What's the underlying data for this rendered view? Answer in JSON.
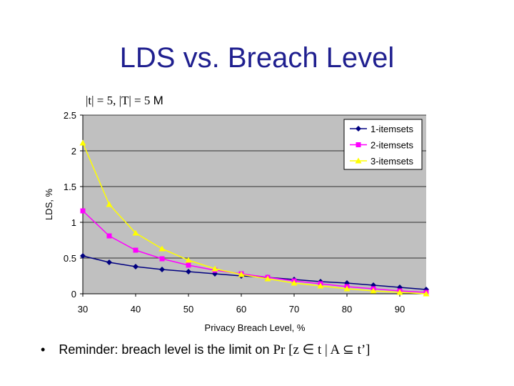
{
  "slide": {
    "title": "LDS vs. Breach Level",
    "subtitle_main": "|t| = 5, |T| = 5",
    "subtitle_suffix": "M",
    "bullet_symbol": "•",
    "bullet_text": "Reminder: breach level is the limit on",
    "bullet_formula": "Pr [z ∈ t | A ⊆ t’]"
  },
  "chart_data": {
    "type": "line",
    "title": "",
    "xlabel": "Privacy Breach Level, %",
    "ylabel": "LDS, %",
    "xlim": [
      30,
      95
    ],
    "ylim": [
      0,
      2.5
    ],
    "x_ticks": [
      "30",
      "40",
      "50",
      "60",
      "70",
      "80",
      "90"
    ],
    "y_ticks": [
      "0",
      "0.5",
      "1",
      "1.5",
      "2",
      "2.5"
    ],
    "grid": true,
    "legend_position": "top-right",
    "x": [
      30,
      35,
      40,
      45,
      50,
      55,
      60,
      65,
      70,
      75,
      80,
      85,
      90,
      95
    ],
    "series": [
      {
        "name": "1-itemsets",
        "color": "#000080",
        "marker": "diamond",
        "values": [
          0.53,
          0.44,
          0.38,
          0.34,
          0.31,
          0.28,
          0.25,
          0.23,
          0.2,
          0.17,
          0.15,
          0.12,
          0.09,
          0.06
        ]
      },
      {
        "name": "2-itemsets",
        "color": "#ff00ff",
        "marker": "square",
        "values": [
          1.16,
          0.81,
          0.61,
          0.49,
          0.4,
          0.33,
          0.28,
          0.23,
          0.18,
          0.14,
          0.1,
          0.07,
          0.04,
          0.02
        ]
      },
      {
        "name": "3-itemsets",
        "color": "#ffff00",
        "marker": "triangle",
        "values": [
          2.11,
          1.25,
          0.85,
          0.63,
          0.47,
          0.35,
          0.27,
          0.21,
          0.15,
          0.11,
          0.07,
          0.04,
          0.02,
          0.0
        ]
      }
    ],
    "plot_background": "#c0c0c0"
  }
}
